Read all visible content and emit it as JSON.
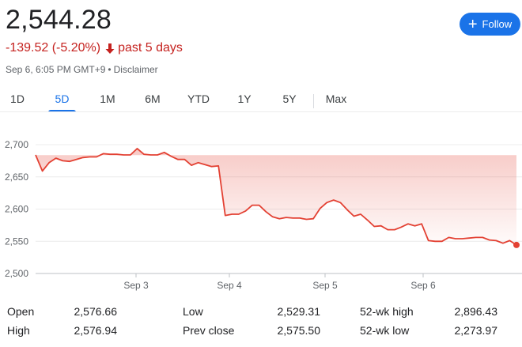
{
  "quote": {
    "price": "2,544.28",
    "change": "-139.52 (-5.20%)",
    "period": "past 5 days",
    "timestamp": "Sep 6, 6:05 PM GMT+9",
    "separator": "•",
    "disclaimer": "Disclaimer"
  },
  "follow": {
    "label": "Follow"
  },
  "tabs": [
    "1D",
    "5D",
    "1M",
    "6M",
    "YTD",
    "1Y",
    "5Y",
    "Max"
  ],
  "active_tab": "5D",
  "colors": {
    "line": "#e34133",
    "accent": "#1a73e8",
    "negative": "#c5221f"
  },
  "chart_data": {
    "type": "area",
    "y_ticks": [
      "2,700",
      "2,650",
      "2,600",
      "2,550",
      "2,500"
    ],
    "ylim": [
      2500,
      2700
    ],
    "x_labels": [
      "Sep 3",
      "Sep 4",
      "Sep 5",
      "Sep 6"
    ],
    "grid": true,
    "baseline": 2683.8,
    "series": [
      {
        "values": [
          2684,
          2659,
          2672,
          2679,
          2675,
          2674,
          2677,
          2680,
          2681,
          2681,
          2686,
          2685,
          2685,
          2684,
          2684,
          2694,
          2685,
          2684,
          2684,
          2688,
          2682,
          2677,
          2677,
          2668,
          2672,
          2669,
          2666,
          2667,
          2590,
          2592,
          2592,
          2597,
          2606,
          2606,
          2596,
          2588,
          2585,
          2587,
          2586,
          2586,
          2584,
          2585,
          2601,
          2610,
          2614,
          2610,
          2599,
          2589,
          2592,
          2583,
          2573,
          2574,
          2568,
          2568,
          2572,
          2577,
          2574,
          2577,
          2551,
          2550,
          2550,
          2556,
          2554,
          2554,
          2555,
          2556,
          2556,
          2552,
          2551,
          2547,
          2551,
          2544.28
        ]
      }
    ]
  },
  "stats": {
    "rows": [
      [
        {
          "label": "Open",
          "value": "2,576.66"
        },
        {
          "label": "Low",
          "value": "2,529.31"
        },
        {
          "label": "52-wk high",
          "value": "2,896.43"
        }
      ],
      [
        {
          "label": "High",
          "value": "2,576.94"
        },
        {
          "label": "Prev close",
          "value": "2,575.50"
        },
        {
          "label": "52-wk low",
          "value": "2,273.97"
        }
      ]
    ]
  }
}
